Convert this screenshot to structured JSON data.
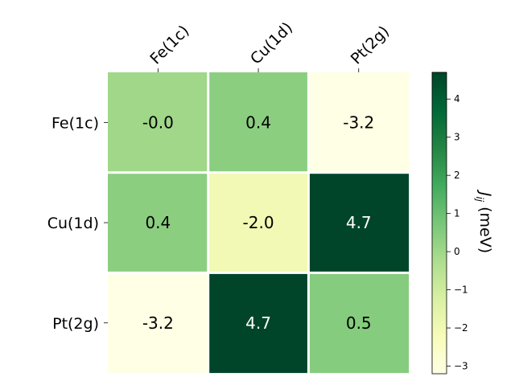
{
  "chart_data": {
    "type": "heatmap",
    "x_categories": [
      "Fe(1c)",
      "Cu(1d)",
      "Pt(2g)"
    ],
    "y_categories": [
      "Fe(1c)",
      "Cu(1d)",
      "Pt(2g)"
    ],
    "values": [
      [
        -0.0,
        0.4,
        -3.2
      ],
      [
        0.4,
        -2.0,
        4.7
      ],
      [
        -3.2,
        4.7,
        0.5
      ]
    ],
    "cell_labels": [
      [
        "-0.0",
        "0.4",
        "-3.2"
      ],
      [
        "0.4",
        "-2.0",
        "4.7"
      ],
      [
        "-3.2",
        "4.7",
        "0.5"
      ]
    ],
    "colorbar": {
      "label_symbol": "J",
      "label_subscript": "ij",
      "label_unit": "(meV)",
      "vmin": -3.2,
      "vmax": 4.7,
      "ticks": [
        -3,
        -2,
        -1,
        0,
        1,
        2,
        3,
        4
      ],
      "tick_labels": [
        "−3",
        "−2",
        "−1",
        "0",
        "1",
        "2",
        "3",
        "4"
      ],
      "colormap": "YlGn",
      "colormap_stops": [
        "#ffffe5",
        "#f7fcb9",
        "#d9f0a3",
        "#addd8e",
        "#78c679",
        "#41ab5d",
        "#238443",
        "#006837",
        "#004529"
      ]
    },
    "x_tick_position": "top",
    "grid": false
  }
}
